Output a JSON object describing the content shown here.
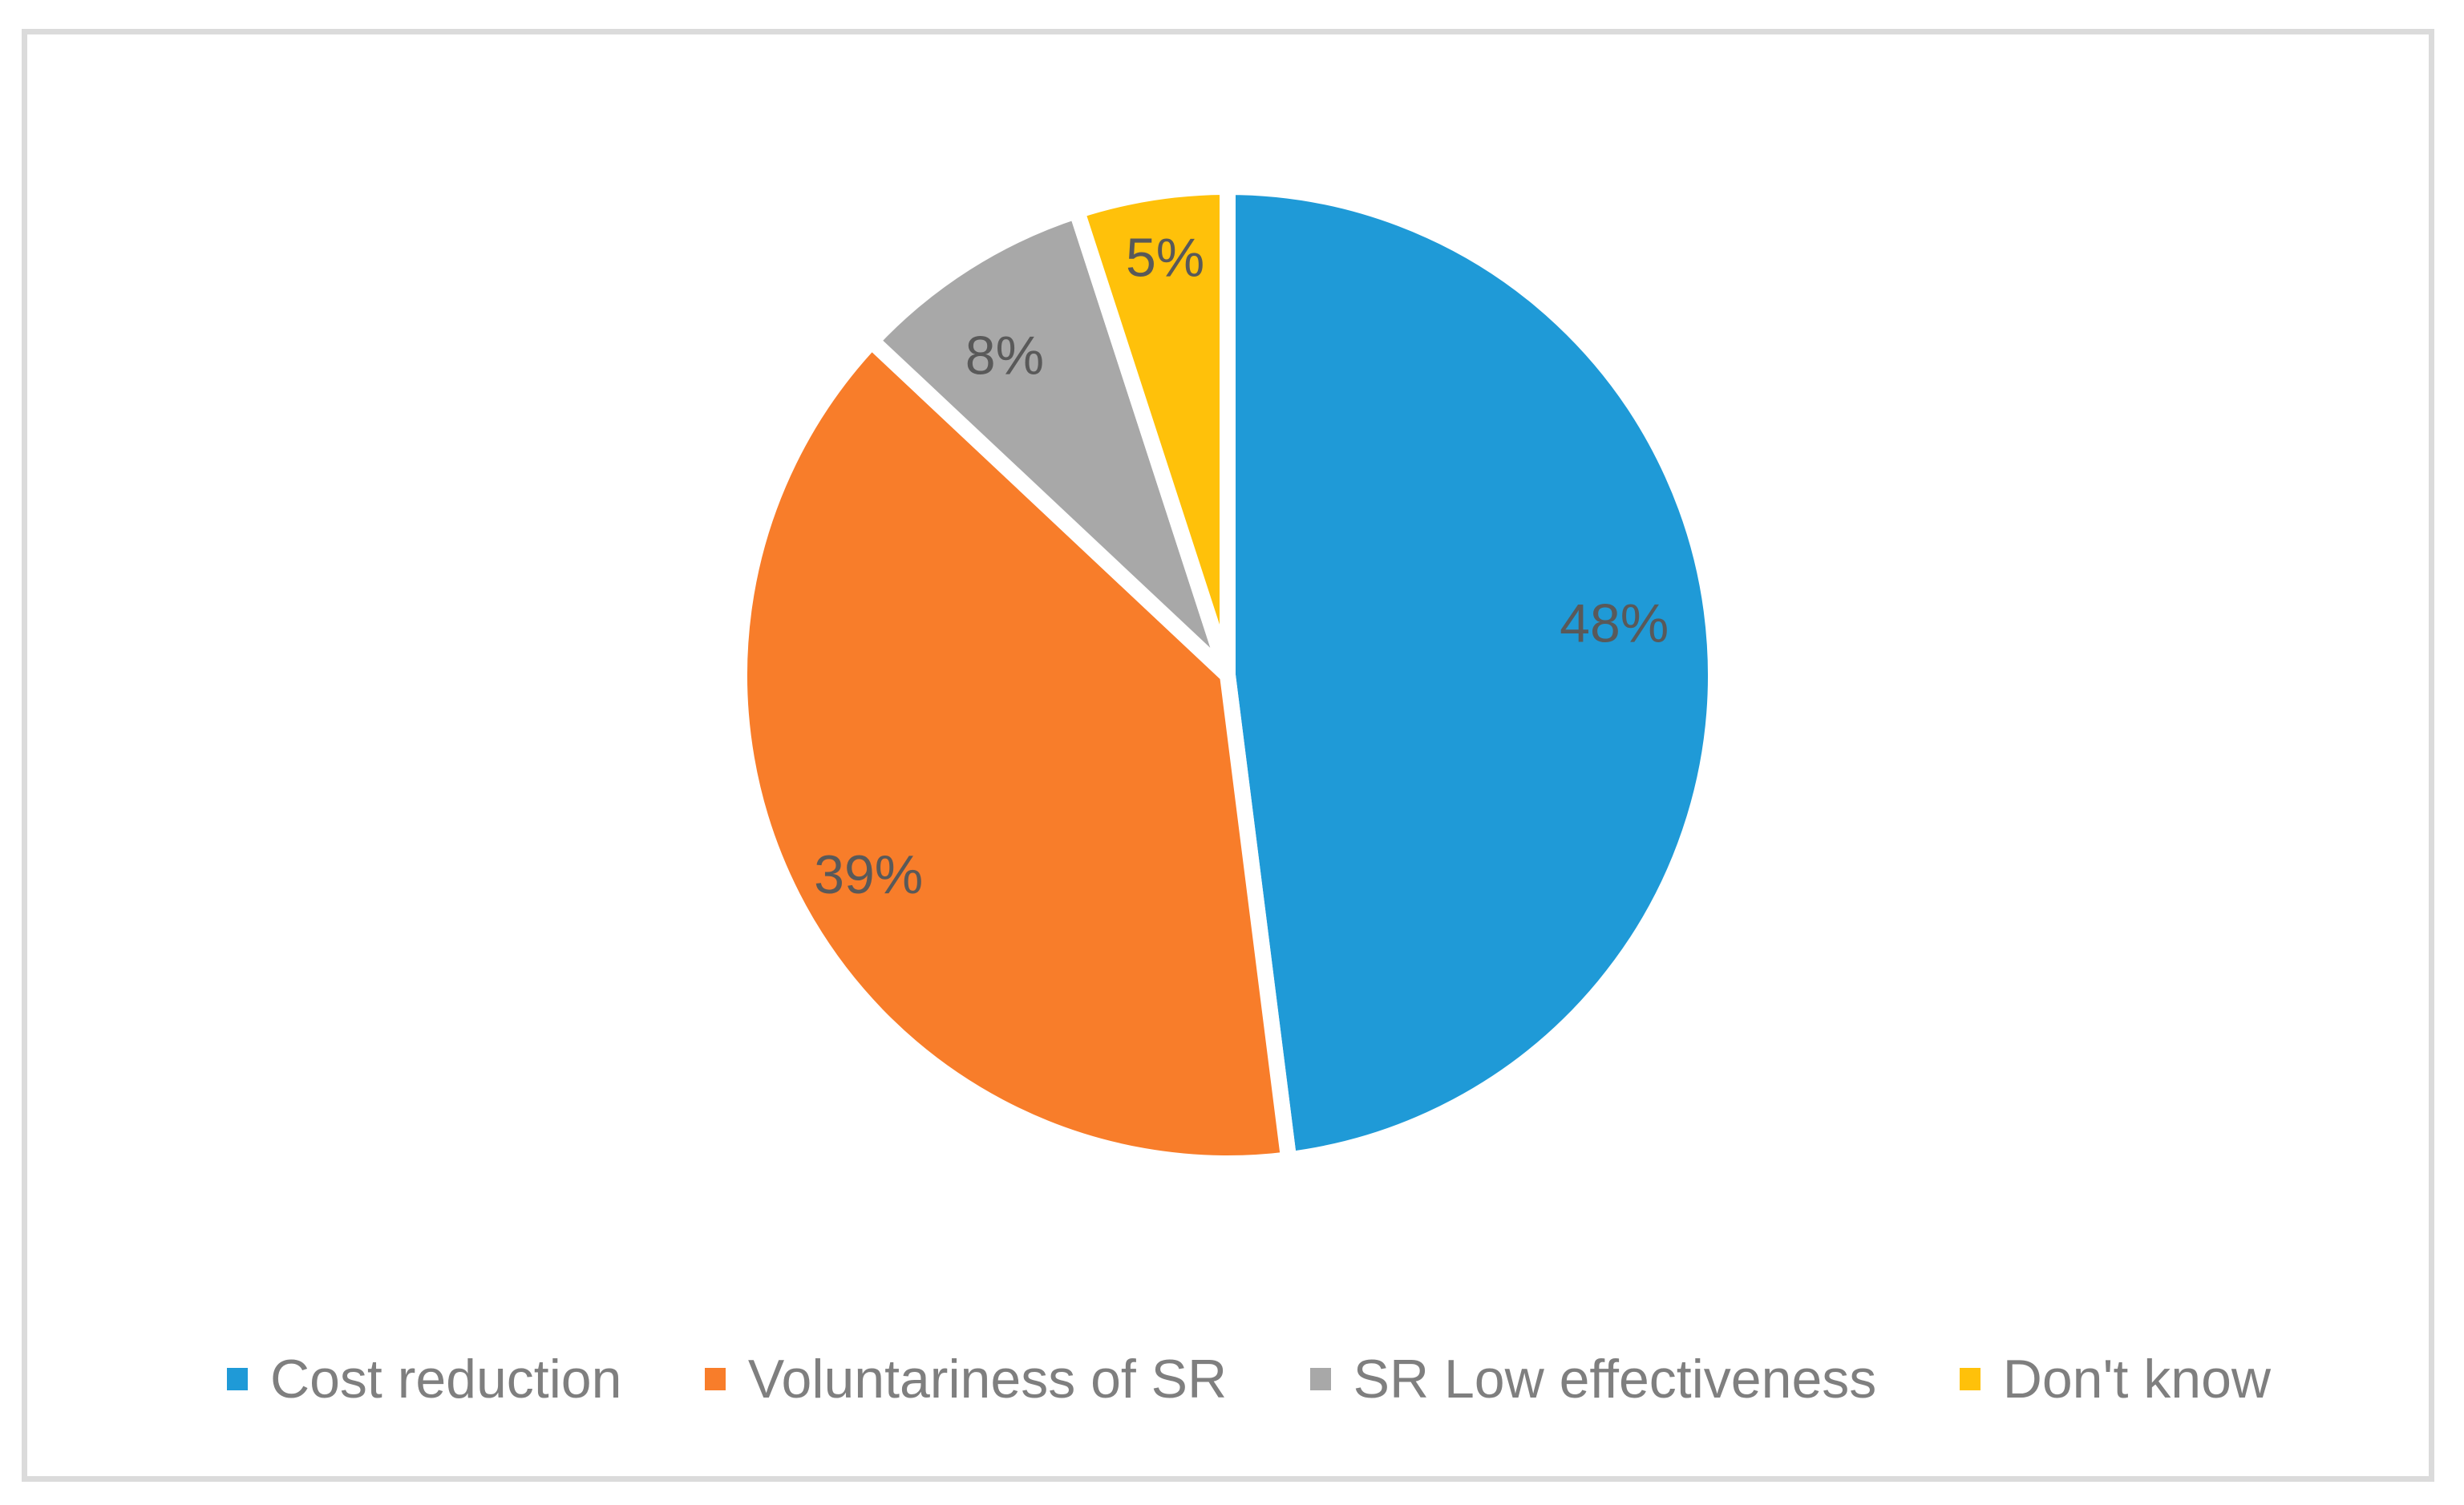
{
  "chart_data": {
    "type": "pie",
    "title": "",
    "start_angle_deg": 0,
    "direction": "clockwise",
    "legend_position": "bottom",
    "slice_border_color": "#FFFFFF",
    "data_label_color": "#595959",
    "legend_text_color": "#7F7F7F",
    "frame_border_color": "#DBDBDB",
    "background_color": "#FFFFFF",
    "series": [
      {
        "label": "Cost reduction",
        "value": 48,
        "data_label": "48%",
        "color": "#1F9AD7"
      },
      {
        "label": "Voluntariness of SR",
        "value": 39,
        "data_label": "39%",
        "color": "#F87D2A"
      },
      {
        "label": "SR Low effectiveness",
        "value": 8,
        "data_label": "8%",
        "color": "#A8A8A8"
      },
      {
        "label": "Don't know",
        "value": 5,
        "data_label": "5%",
        "color": "#FFC10A"
      }
    ]
  }
}
